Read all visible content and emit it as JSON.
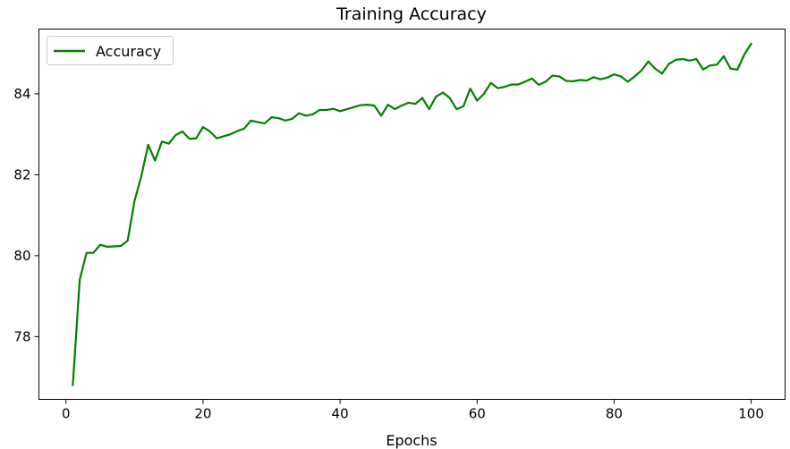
{
  "chart_data": {
    "type": "line",
    "title": "Training Accuracy",
    "xlabel": "Epochs",
    "ylabel": "",
    "xlim": [
      -3.95,
      104.95
    ],
    "ylim": [
      76.45,
      85.6
    ],
    "xticks": [
      0,
      20,
      40,
      60,
      80,
      100
    ],
    "yticks": [
      78,
      80,
      82,
      84
    ],
    "grid": false,
    "legend_position": "upper-left",
    "series": [
      {
        "name": "Accuracy",
        "color": "#008000",
        "x": [
          1,
          2,
          3,
          4,
          5,
          6,
          7,
          8,
          9,
          10,
          11,
          12,
          13,
          14,
          15,
          16,
          17,
          18,
          19,
          20,
          21,
          22,
          23,
          24,
          25,
          26,
          27,
          28,
          29,
          30,
          31,
          32,
          33,
          34,
          35,
          36,
          37,
          38,
          39,
          40,
          41,
          42,
          43,
          44,
          45,
          46,
          47,
          48,
          49,
          50,
          51,
          52,
          53,
          54,
          55,
          56,
          57,
          58,
          59,
          60,
          61,
          62,
          63,
          64,
          65,
          66,
          67,
          68,
          69,
          70,
          71,
          72,
          73,
          74,
          75,
          76,
          77,
          78,
          79,
          80,
          81,
          82,
          83,
          84,
          85,
          86,
          87,
          88,
          89,
          90,
          91,
          92,
          93,
          94,
          95,
          96,
          97,
          98,
          99,
          100
        ],
        "y": [
          76.8,
          79.4,
          80.07,
          80.07,
          80.27,
          80.22,
          80.23,
          80.24,
          80.37,
          81.35,
          81.97,
          82.74,
          82.35,
          82.82,
          82.77,
          82.98,
          83.07,
          82.89,
          82.9,
          83.18,
          83.07,
          82.9,
          82.95,
          83.0,
          83.08,
          83.14,
          83.34,
          83.3,
          83.27,
          83.42,
          83.4,
          83.34,
          83.38,
          83.52,
          83.46,
          83.49,
          83.6,
          83.6,
          83.63,
          83.57,
          83.62,
          83.67,
          83.72,
          83.73,
          83.71,
          83.46,
          83.73,
          83.62,
          83.71,
          83.78,
          83.75,
          83.9,
          83.62,
          83.93,
          84.03,
          83.9,
          83.62,
          83.69,
          84.13,
          83.83,
          84.0,
          84.27,
          84.14,
          84.17,
          84.23,
          84.23,
          84.3,
          84.38,
          84.22,
          84.3,
          84.45,
          84.43,
          84.32,
          84.31,
          84.34,
          84.33,
          84.41,
          84.36,
          84.4,
          84.48,
          84.43,
          84.3,
          84.43,
          84.58,
          84.8,
          84.62,
          84.5,
          84.74,
          84.84,
          84.86,
          84.82,
          84.86,
          84.6,
          84.7,
          84.72,
          84.93,
          84.62,
          84.6,
          84.97,
          85.24
        ]
      }
    ]
  }
}
